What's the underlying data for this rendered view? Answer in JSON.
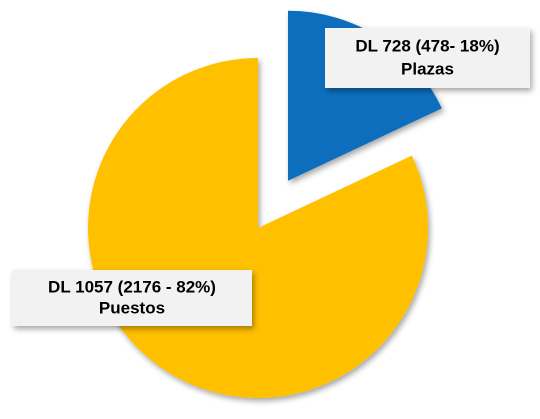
{
  "chart_data": {
    "type": "pie",
    "categories": [
      "DL 728 (478- 18%)",
      "DL 1057 (2176 - 82%)"
    ],
    "category_notes": [
      "Plazas",
      "Puestos"
    ],
    "values": [
      18,
      82
    ],
    "colors": [
      "#0a6ebd",
      "#ffc000"
    ],
    "exploded": [
      true,
      false
    ]
  }
}
